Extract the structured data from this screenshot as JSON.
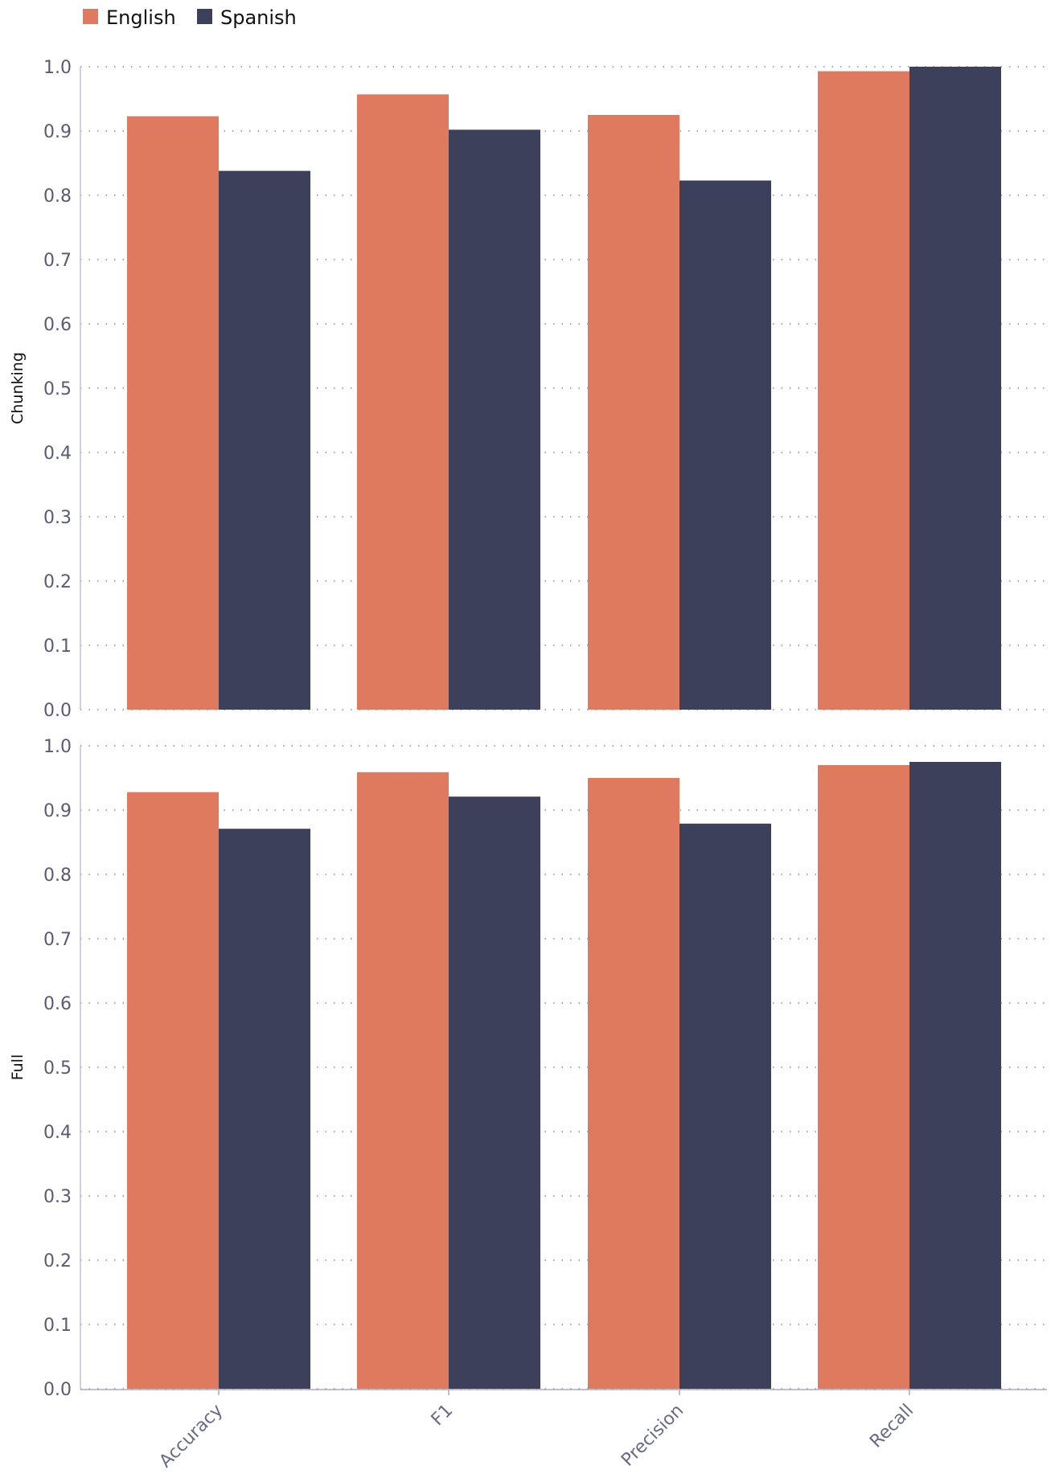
{
  "legend": [
    {
      "label": "English",
      "color": "#e07a5f"
    },
    {
      "label": "Spanish",
      "color": "#3d405b"
    }
  ],
  "chart_data": {
    "type": "bar",
    "categories": [
      "Accuracy",
      "F1",
      "Precision",
      "Recall"
    ],
    "ylim": [
      0,
      1.0
    ],
    "yticks": [
      "0.0",
      "0.1",
      "0.2",
      "0.3",
      "0.4",
      "0.5",
      "0.6",
      "0.7",
      "0.8",
      "0.9",
      "1.0"
    ],
    "grid": "dotted",
    "legend_position": "top-left",
    "panels": [
      {
        "ylabel": "Chunking",
        "series": [
          {
            "name": "English",
            "values": [
              0.923,
              0.957,
              0.925,
              0.993
            ]
          },
          {
            "name": "Spanish",
            "values": [
              0.838,
              0.902,
              0.823,
              1.0
            ]
          }
        ]
      },
      {
        "ylabel": "Full",
        "series": [
          {
            "name": "English",
            "values": [
              0.928,
              0.959,
              0.95,
              0.97
            ]
          },
          {
            "name": "Spanish",
            "values": [
              0.871,
              0.921,
              0.879,
              0.975
            ]
          }
        ]
      }
    ]
  }
}
